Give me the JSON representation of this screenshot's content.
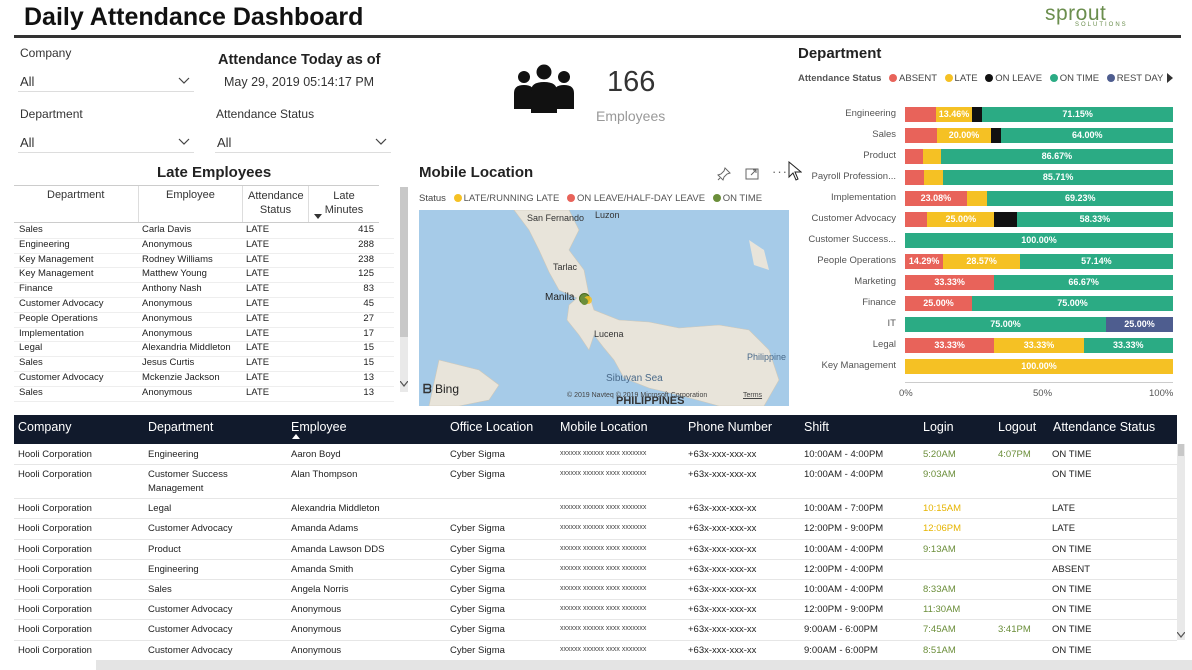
{
  "header": {
    "title": "Daily Attendance Dashboard",
    "logo_text": "sprout",
    "logo_sub": "SOLUTIONS"
  },
  "filters": {
    "company": {
      "label": "Company",
      "value": "All"
    },
    "department": {
      "label": "Department",
      "value": "All"
    },
    "attendance_status": {
      "label": "Attendance Status",
      "value": "All"
    }
  },
  "today": {
    "title": "Attendance Today as of",
    "datetime": "May 29, 2019 05:14:17 PM"
  },
  "kpi": {
    "count": "166",
    "label": "Employees",
    "icon": "people-icon"
  },
  "late_employees": {
    "title": "Late Employees",
    "columns": [
      "Department",
      "Employee",
      "Attendance Status",
      "Late Minutes"
    ],
    "rows": [
      [
        "Sales",
        "Carla Davis",
        "LATE",
        "415"
      ],
      [
        "Engineering",
        "Anonymous",
        "LATE",
        "288"
      ],
      [
        "Key Management",
        "Rodney Williams",
        "LATE",
        "238"
      ],
      [
        "Key Management",
        "Matthew Young",
        "LATE",
        "125"
      ],
      [
        "Finance",
        "Anthony Nash",
        "LATE",
        "83"
      ],
      [
        "Customer Advocacy",
        "Anonymous",
        "LATE",
        "45"
      ],
      [
        "People Operations",
        "Anonymous",
        "LATE",
        "27"
      ],
      [
        "Implementation",
        "Anonymous",
        "LATE",
        "17"
      ],
      [
        "Legal",
        "Alexandria Middleton",
        "LATE",
        "15"
      ],
      [
        "Sales",
        "Jesus Curtis",
        "LATE",
        "15"
      ],
      [
        "Customer Advocacy",
        "Mckenzie Jackson",
        "LATE",
        "13"
      ],
      [
        "Sales",
        "Anonymous",
        "LATE",
        "13"
      ]
    ]
  },
  "mobile_location": {
    "title": "Mobile Location",
    "legend_title": "Status",
    "legend": [
      {
        "label": "LATE/RUNNING LATE",
        "color": "#f5c124"
      },
      {
        "label": "ON LEAVE/HALF-DAY LEAVE",
        "color": "#e8635a"
      },
      {
        "label": "ON TIME",
        "color": "#6b8e3a"
      }
    ],
    "places": [
      "San Fernando",
      "Luzon",
      "Tarlac",
      "Manila",
      "Lucena",
      "Sibuyan Sea",
      "Philippine",
      "PHILIPPINES"
    ],
    "bing": "Bing",
    "copyright": "© 2019 Navteq  © 2019 Microsoft Corporation",
    "terms": "Terms"
  },
  "department": {
    "title": "Department",
    "legend_title": "Attendance Status",
    "legend": [
      {
        "label": "ABSENT",
        "color": "#e8635a"
      },
      {
        "label": "LATE",
        "color": "#f5c124"
      },
      {
        "label": "ON LEAVE",
        "color": "#111111"
      },
      {
        "label": "ON TIME",
        "color": "#2bab84"
      },
      {
        "label": "REST DAY",
        "color": "#4e5d8f"
      }
    ],
    "chart_data": {
      "type": "bar",
      "orientation": "horizontal-stacked-100",
      "categories": [
        "Engineering",
        "Sales",
        "Product",
        "Payroll Profession...",
        "Implementation",
        "Customer Advocacy",
        "Customer Success...",
        "People Operations",
        "Marketing",
        "Finance",
        "IT",
        "Legal",
        "Key Management"
      ],
      "series": [
        {
          "name": "ABSENT",
          "color": "#e8635a",
          "values": [
            11.54,
            12.0,
            6.67,
            7.14,
            23.08,
            8.33,
            0,
            14.29,
            33.33,
            25.0,
            0,
            33.33,
            0
          ]
        },
        {
          "name": "LATE",
          "color": "#f5c124",
          "values": [
            13.46,
            20.0,
            6.66,
            7.15,
            7.69,
            25.0,
            0,
            28.57,
            0,
            0,
            0,
            33.33,
            100.0
          ]
        },
        {
          "name": "ON LEAVE",
          "color": "#111111",
          "values": [
            3.85,
            4.0,
            0,
            0,
            0,
            8.34,
            0,
            0,
            0,
            0,
            0,
            0,
            0
          ]
        },
        {
          "name": "ON TIME",
          "color": "#2bab84",
          "values": [
            71.15,
            64.0,
            86.67,
            85.71,
            69.23,
            58.33,
            100.0,
            57.14,
            66.67,
            75.0,
            75.0,
            33.33,
            0
          ]
        },
        {
          "name": "REST DAY",
          "color": "#4e5d8f",
          "values": [
            0,
            0,
            0,
            0,
            0,
            0,
            0,
            0,
            0,
            0,
            25.0,
            0,
            0
          ]
        }
      ],
      "data_labels": [
        [
          "",
          "13.46%",
          "",
          "71.15%",
          ""
        ],
        [
          "",
          "20.00%",
          "",
          "64.00%",
          ""
        ],
        [
          "",
          "",
          "",
          "86.67%",
          ""
        ],
        [
          "",
          "",
          "",
          "85.71%",
          ""
        ],
        [
          "23.08%",
          "",
          "",
          "69.23%",
          ""
        ],
        [
          "",
          "25.00%",
          "",
          "58.33%",
          ""
        ],
        [
          "",
          "",
          "",
          "100.00%",
          ""
        ],
        [
          "14.29%",
          "28.57%",
          "",
          "57.14%",
          ""
        ],
        [
          "33.33%",
          "",
          "",
          "66.67%",
          ""
        ],
        [
          "25.00%",
          "",
          "",
          "75.00%",
          ""
        ],
        [
          "",
          "",
          "",
          "75.00%",
          "25.00%"
        ],
        [
          "33.33%",
          "33.33%",
          "",
          "33.33%",
          ""
        ],
        [
          "",
          "100.00%",
          "",
          "",
          ""
        ]
      ],
      "xticks": [
        "0%",
        "50%",
        "100%"
      ],
      "xlim": [
        0,
        100
      ]
    }
  },
  "attendance_table": {
    "columns": [
      "Company",
      "Department",
      "Employee",
      "Office Location",
      "Mobile Location",
      "Phone Number",
      "Shift",
      "Login",
      "Logout",
      "Attendance Status"
    ],
    "rows": [
      {
        "company": "Hooli Corporation",
        "department": "Engineering",
        "employee": "Aaron Boyd",
        "office": "Cyber Sigma",
        "mobile": "xxxxxx xxxxxx xxxx xxxxxxx",
        "phone": "+63x-xxx-xxx-xx",
        "shift": "10:00AM - 4:00PM",
        "login": "5:20AM",
        "login_color": "#6b8e3a",
        "logout": "4:07PM",
        "status": "ON TIME"
      },
      {
        "company": "Hooli Corporation",
        "department": "Customer Success\nManagement",
        "employee": "Alan Thompson",
        "office": "Cyber Sigma",
        "mobile": "xxxxxx xxxxxx xxxx xxxxxxx",
        "phone": "+63x-xxx-xxx-xx",
        "shift": "10:00AM - 4:00PM",
        "login": "9:03AM",
        "login_color": "#6b8e3a",
        "logout": "",
        "status": "ON TIME"
      },
      {
        "company": "Hooli Corporation",
        "department": "Legal",
        "employee": "Alexandria Middleton",
        "office": "",
        "mobile": "xxxxxx xxxxxx xxxx xxxxxxx",
        "phone": "+63x-xxx-xxx-xx",
        "shift": "10:00AM - 7:00PM",
        "login": "10:15AM",
        "login_color": "#e6b400",
        "logout": "",
        "status": "LATE"
      },
      {
        "company": "Hooli Corporation",
        "department": "Customer Advocacy",
        "employee": "Amanda Adams",
        "office": "Cyber Sigma",
        "mobile": "xxxxxx xxxxxx xxxx xxxxxxx",
        "phone": "+63x-xxx-xxx-xx",
        "shift": "12:00PM - 9:00PM",
        "login": "12:06PM",
        "login_color": "#e6b400",
        "logout": "",
        "status": "LATE"
      },
      {
        "company": "Hooli Corporation",
        "department": "Product",
        "employee": "Amanda Lawson DDS",
        "office": "Cyber Sigma",
        "mobile": "xxxxxx xxxxxx xxxx xxxxxxx",
        "phone": "+63x-xxx-xxx-xx",
        "shift": "10:00AM - 4:00PM",
        "login": "9:13AM",
        "login_color": "#6b8e3a",
        "logout": "",
        "status": "ON TIME"
      },
      {
        "company": "Hooli Corporation",
        "department": "Engineering",
        "employee": "Amanda Smith",
        "office": "Cyber Sigma",
        "mobile": "xxxxxx xxxxxx xxxx xxxxxxx",
        "phone": "+63x-xxx-xxx-xx",
        "shift": "12:00PM - 4:00PM",
        "login": "",
        "login_color": "#6b8e3a",
        "logout": "",
        "status": "ABSENT"
      },
      {
        "company": "Hooli Corporation",
        "department": "Sales",
        "employee": "Angela Norris",
        "office": "Cyber Sigma",
        "mobile": "xxxxxx xxxxxx xxxx xxxxxxx",
        "phone": "+63x-xxx-xxx-xx",
        "shift": "10:00AM - 4:00PM",
        "login": "8:33AM",
        "login_color": "#6b8e3a",
        "logout": "",
        "status": "ON TIME"
      },
      {
        "company": "Hooli Corporation",
        "department": "Customer Advocacy",
        "employee": "Anonymous",
        "office": "Cyber Sigma",
        "mobile": "xxxxxx xxxxxx xxxx xxxxxxx",
        "phone": "+63x-xxx-xxx-xx",
        "shift": "12:00PM - 9:00PM",
        "login": "11:30AM",
        "login_color": "#6b8e3a",
        "logout": "",
        "status": "ON TIME"
      },
      {
        "company": "Hooli Corporation",
        "department": "Customer Advocacy",
        "employee": "Anonymous",
        "office": "Cyber Sigma",
        "mobile": "xxxxxx xxxxxx xxxx xxxxxxx",
        "phone": "+63x-xxx-xxx-xx",
        "shift": "9:00AM - 6:00PM",
        "login": "7:45AM",
        "login_color": "#6b8e3a",
        "logout": "3:41PM",
        "status": "ON TIME"
      },
      {
        "company": "Hooli Corporation",
        "department": "Customer Advocacy",
        "employee": "Anonymous",
        "office": "Cyber Sigma",
        "mobile": "xxxxxx xxxxxx xxxx xxxxxxx",
        "phone": "+63x-xxx-xxx-xx",
        "shift": "9:00AM - 6:00PM",
        "login": "8:51AM",
        "login_color": "#6b8e3a",
        "logout": "",
        "status": "ON TIME"
      }
    ]
  }
}
